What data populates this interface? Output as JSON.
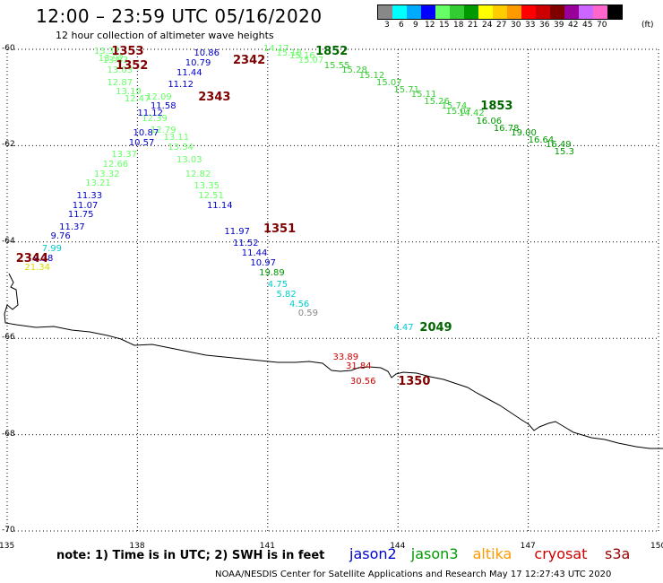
{
  "title": "12:00 – 23:59 UTC 05/16/2020",
  "subtitle": "12 hour collection of altimeter wave heights",
  "scale": {
    "labels": [
      "3",
      "6",
      "9",
      "12",
      "15",
      "18",
      "21",
      "24",
      "27",
      "30",
      "33",
      "36",
      "39",
      "42",
      "45",
      "70"
    ],
    "unit": "(ft)",
    "colors": [
      "#888888",
      "#00ffff",
      "#00aaff",
      "#0000ff",
      "#66ff66",
      "#33cc33",
      "#009900",
      "#ffff00",
      "#ffcc00",
      "#ff9900",
      "#ff0000",
      "#cc0000",
      "#800000",
      "#990099",
      "#cc66ff",
      "#ff66cc",
      "#000000"
    ]
  },
  "map": {
    "lon_ticks": [
      "135",
      "138",
      "141",
      "144",
      "147",
      "150"
    ],
    "lat_ticks": [
      "-60",
      "-62",
      "-64",
      "-66",
      "-68",
      "-70"
    ],
    "grid_lons": [
      135,
      138,
      141,
      144,
      147,
      150
    ],
    "grid_lats": [
      -60,
      -62,
      -64,
      -66,
      -68,
      -70
    ]
  },
  "note": "note:  1) Time is in UTC;  2) SWH is in feet",
  "satellites": [
    {
      "name": "jason2",
      "color": "#0000cc"
    },
    {
      "name": "jason3",
      "color": "#009900"
    },
    {
      "name": "altika",
      "color": "#ff9900"
    },
    {
      "name": "cryosat",
      "color": "#cc0000"
    },
    {
      "name": "s3a",
      "color": "#990000"
    }
  ],
  "footer": "NOAA/NESDIS Center for Satellite Applications and Research     May 17 12:27:43 UTC 2020",
  "observations": [
    {
      "lon": 137.0,
      "lat": -60.05,
      "v": "13.37",
      "c": "#66ff66"
    },
    {
      "lon": 137.1,
      "lat": -60.2,
      "v": "13.92",
      "c": "#66ff66"
    },
    {
      "lon": 137.2,
      "lat": -60.25,
      "v": "13.83",
      "c": "#66ff66"
    },
    {
      "lon": 137.3,
      "lat": -60.45,
      "v": "13.03",
      "c": "#66ff66"
    },
    {
      "lon": 137.3,
      "lat": -60.7,
      "v": "12.87",
      "c": "#66ff66"
    },
    {
      "lon": 137.5,
      "lat": -60.9,
      "v": "13.19",
      "c": "#66ff66"
    },
    {
      "lon": 137.7,
      "lat": -61.05,
      "v": "12.47",
      "c": "#66ff66"
    },
    {
      "lon": 138.2,
      "lat": -61.0,
      "v": "12.09",
      "c": "#66ff66"
    },
    {
      "lon": 138.1,
      "lat": -61.45,
      "v": "12.39",
      "c": "#66ff66"
    },
    {
      "lon": 138.3,
      "lat": -61.7,
      "v": "12.79",
      "c": "#66ff66"
    },
    {
      "lon": 138.6,
      "lat": -61.85,
      "v": "13.11",
      "c": "#66ff66"
    },
    {
      "lon": 138.7,
      "lat": -62.05,
      "v": "13.34",
      "c": "#66ff66"
    },
    {
      "lon": 138.9,
      "lat": -62.3,
      "v": "13.03",
      "c": "#66ff66"
    },
    {
      "lon": 139.1,
      "lat": -62.6,
      "v": "12.82",
      "c": "#66ff66"
    },
    {
      "lon": 139.3,
      "lat": -62.85,
      "v": "13.35",
      "c": "#66ff66"
    },
    {
      "lon": 139.4,
      "lat": -63.05,
      "v": "12.51",
      "c": "#66ff66"
    },
    {
      "lon": 139.6,
      "lat": -63.25,
      "v": "11.14",
      "c": "#0000cc"
    },
    {
      "lon": 137.4,
      "lat": -62.2,
      "v": "13.37",
      "c": "#66ff66"
    },
    {
      "lon": 137.2,
      "lat": -62.4,
      "v": "12.66",
      "c": "#66ff66"
    },
    {
      "lon": 137.0,
      "lat": -62.6,
      "v": "13.32",
      "c": "#66ff66"
    },
    {
      "lon": 136.8,
      "lat": -62.8,
      "v": "13.21",
      "c": "#66ff66"
    },
    {
      "lon": 136.6,
      "lat": -63.05,
      "v": "11.33",
      "c": "#0000cc"
    },
    {
      "lon": 136.5,
      "lat": -63.25,
      "v": "11.07",
      "c": "#0000cc"
    },
    {
      "lon": 136.4,
      "lat": -63.45,
      "v": "11.75",
      "c": "#0000cc"
    },
    {
      "lon": 136.2,
      "lat": -63.7,
      "v": "11.37",
      "c": "#0000cc"
    },
    {
      "lon": 136.0,
      "lat": -63.9,
      "v": "9.76",
      "c": "#0000cc"
    },
    {
      "lon": 135.8,
      "lat": -64.15,
      "v": "7.99",
      "c": "#00cccc"
    },
    {
      "lon": 135.6,
      "lat": -64.35,
      "v": "9.38",
      "c": "#0000cc"
    },
    {
      "lon": 135.4,
      "lat": -64.55,
      "v": "21.34",
      "c": "#dddd00"
    },
    {
      "lon": 139.3,
      "lat": -60.1,
      "v": "10.86",
      "c": "#0000cc"
    },
    {
      "lon": 139.1,
      "lat": -60.3,
      "v": "10.79",
      "c": "#0000cc"
    },
    {
      "lon": 138.9,
      "lat": -60.5,
      "v": "11.44",
      "c": "#0000cc"
    },
    {
      "lon": 138.7,
      "lat": -60.75,
      "v": "11.12",
      "c": "#0000cc"
    },
    {
      "lon": 138.3,
      "lat": -61.2,
      "v": "11.58",
      "c": "#0000cc"
    },
    {
      "lon": 138.0,
      "lat": -61.35,
      "v": "11.12",
      "c": "#0000cc"
    },
    {
      "lon": 137.9,
      "lat": -61.75,
      "v": "10.87",
      "c": "#0000cc"
    },
    {
      "lon": 137.8,
      "lat": -61.95,
      "v": "10.57",
      "c": "#0000cc"
    },
    {
      "lon": 140.0,
      "lat": -63.8,
      "v": "11.97",
      "c": "#0000cc"
    },
    {
      "lon": 140.2,
      "lat": -64.05,
      "v": "11.52",
      "c": "#0000cc"
    },
    {
      "lon": 140.4,
      "lat": -64.25,
      "v": "11.44",
      "c": "#0000cc"
    },
    {
      "lon": 140.6,
      "lat": -64.45,
      "v": "10.97",
      "c": "#0000cc"
    },
    {
      "lon": 140.8,
      "lat": -64.65,
      "v": "19.89",
      "c": "#009900"
    },
    {
      "lon": 141.0,
      "lat": -64.9,
      "v": "4.75",
      "c": "#00cccc"
    },
    {
      "lon": 141.2,
      "lat": -65.1,
      "v": "5.82",
      "c": "#00cccc"
    },
    {
      "lon": 141.5,
      "lat": -65.3,
      "v": "4.56",
      "c": "#00cccc"
    },
    {
      "lon": 141.7,
      "lat": -65.5,
      "v": "0.59",
      "c": "#888888"
    },
    {
      "lon": 143.9,
      "lat": -65.8,
      "v": "4.47",
      "c": "#00cccc"
    },
    {
      "lon": 142.5,
      "lat": -66.4,
      "v": "33.89",
      "c": "#cc0000"
    },
    {
      "lon": 142.8,
      "lat": -66.6,
      "v": "31.84",
      "c": "#cc0000"
    },
    {
      "lon": 142.9,
      "lat": -66.9,
      "v": "30.56",
      "c": "#cc0000"
    },
    {
      "lon": 140.9,
      "lat": -60.0,
      "v": "14.17",
      "c": "#66ff66"
    },
    {
      "lon": 141.2,
      "lat": -60.1,
      "v": "15.18",
      "c": "#66ff66"
    },
    {
      "lon": 141.5,
      "lat": -60.15,
      "v": "15.16",
      "c": "#66ff66"
    },
    {
      "lon": 141.7,
      "lat": -60.25,
      "v": "15.07",
      "c": "#66ff66"
    },
    {
      "lon": 142.3,
      "lat": -60.35,
      "v": "15.55",
      "c": "#33cc33"
    },
    {
      "lon": 142.7,
      "lat": -60.45,
      "v": "15.28",
      "c": "#33cc33"
    },
    {
      "lon": 143.1,
      "lat": -60.55,
      "v": "15.12",
      "c": "#33cc33"
    },
    {
      "lon": 143.5,
      "lat": -60.7,
      "v": "15.07",
      "c": "#33cc33"
    },
    {
      "lon": 143.9,
      "lat": -60.85,
      "v": "15.71",
      "c": "#33cc33"
    },
    {
      "lon": 144.3,
      "lat": -60.95,
      "v": "15.11",
      "c": "#33cc33"
    },
    {
      "lon": 144.6,
      "lat": -61.1,
      "v": "15.26",
      "c": "#33cc33"
    },
    {
      "lon": 145.0,
      "lat": -61.2,
      "v": "15.74",
      "c": "#33cc33"
    },
    {
      "lon": 145.1,
      "lat": -61.3,
      "v": "15.07",
      "c": "#33cc33"
    },
    {
      "lon": 145.4,
      "lat": -61.35,
      "v": "14.42",
      "c": "#33cc33"
    },
    {
      "lon": 145.8,
      "lat": -61.5,
      "v": "16.06",
      "c": "#009900"
    },
    {
      "lon": 146.2,
      "lat": -61.65,
      "v": "16.78",
      "c": "#009900"
    },
    {
      "lon": 146.6,
      "lat": -61.75,
      "v": "19.00",
      "c": "#009900"
    },
    {
      "lon": 147.0,
      "lat": -61.9,
      "v": "16.64",
      "c": "#009900"
    },
    {
      "lon": 147.4,
      "lat": -62.0,
      "v": "16.49",
      "c": "#009900"
    },
    {
      "lon": 147.6,
      "lat": -62.15,
      "v": "15.3",
      "c": "#009900"
    }
  ],
  "passes": [
    {
      "lon": 137.4,
      "lat": -60.05,
      "v": "1353",
      "c": "#800000"
    },
    {
      "lon": 137.5,
      "lat": -60.35,
      "v": "1352",
      "c": "#800000"
    },
    {
      "lon": 140.2,
      "lat": -60.25,
      "v": "2342",
      "c": "#800000"
    },
    {
      "lon": 139.4,
      "lat": -61.0,
      "v": "2343",
      "c": "#800000"
    },
    {
      "lon": 140.9,
      "lat": -63.75,
      "v": "1351",
      "c": "#800000"
    },
    {
      "lon": 135.2,
      "lat": -64.35,
      "v": "2344",
      "c": "#800000"
    },
    {
      "lon": 142.1,
      "lat": -60.05,
      "v": "1852",
      "c": "#006600"
    },
    {
      "lon": 145.9,
      "lat": -61.2,
      "v": "1853",
      "c": "#006600"
    },
    {
      "lon": 144.5,
      "lat": -65.8,
      "v": "2049",
      "c": "#006600"
    },
    {
      "lon": 144.0,
      "lat": -66.9,
      "v": "1350",
      "c": "#800000"
    }
  ]
}
